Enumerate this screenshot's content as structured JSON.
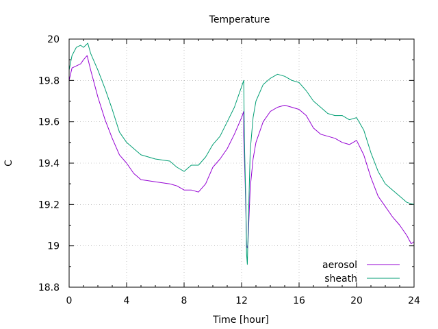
{
  "chart_data": {
    "type": "line",
    "title": "Temperature",
    "xlabel": "Time [hour]",
    "ylabel": "C",
    "xlim": [
      0,
      24
    ],
    "ylim": [
      18.8,
      20
    ],
    "xticks": [
      0,
      4,
      8,
      12,
      16,
      20,
      24
    ],
    "yticks": [
      18.8,
      19,
      19.2,
      19.4,
      19.6,
      19.8,
      20
    ],
    "grid": true,
    "legend_position": "bottom-right",
    "series": [
      {
        "name": "aerosol",
        "color": "#9400d3",
        "points": [
          [
            0,
            19.8
          ],
          [
            0.2,
            19.86
          ],
          [
            0.5,
            19.87
          ],
          [
            0.8,
            19.88
          ],
          [
            1.0,
            19.9
          ],
          [
            1.25,
            19.92
          ],
          [
            1.5,
            19.85
          ],
          [
            2.0,
            19.72
          ],
          [
            2.5,
            19.61
          ],
          [
            3.0,
            19.52
          ],
          [
            3.5,
            19.44
          ],
          [
            4.0,
            19.4
          ],
          [
            4.5,
            19.35
          ],
          [
            5.0,
            19.32
          ],
          [
            6.0,
            19.31
          ],
          [
            7.0,
            19.3
          ],
          [
            7.5,
            19.29
          ],
          [
            8.0,
            19.27
          ],
          [
            8.5,
            19.27
          ],
          [
            9.0,
            19.26
          ],
          [
            9.5,
            19.3
          ],
          [
            10.0,
            19.38
          ],
          [
            10.5,
            19.42
          ],
          [
            11.0,
            19.47
          ],
          [
            11.5,
            19.54
          ],
          [
            12.0,
            19.62
          ],
          [
            12.15,
            19.65
          ],
          [
            12.15,
            19.53
          ],
          [
            12.25,
            19.3
          ],
          [
            12.3,
            19.16
          ],
          [
            12.35,
            19.0
          ],
          [
            12.4,
            18.99
          ],
          [
            12.45,
            19.02
          ],
          [
            12.6,
            19.28
          ],
          [
            12.8,
            19.42
          ],
          [
            13.0,
            19.5
          ],
          [
            13.5,
            19.6
          ],
          [
            14.0,
            19.65
          ],
          [
            14.5,
            19.67
          ],
          [
            15.0,
            19.68
          ],
          [
            15.5,
            19.67
          ],
          [
            16.0,
            19.66
          ],
          [
            16.5,
            19.63
          ],
          [
            17.0,
            19.57
          ],
          [
            17.5,
            19.54
          ],
          [
            18.0,
            19.53
          ],
          [
            18.5,
            19.52
          ],
          [
            19.0,
            19.5
          ],
          [
            19.5,
            19.49
          ],
          [
            20.0,
            19.51
          ],
          [
            20.5,
            19.44
          ],
          [
            21.0,
            19.33
          ],
          [
            21.5,
            19.24
          ],
          [
            22.0,
            19.19
          ],
          [
            22.5,
            19.14
          ],
          [
            23.0,
            19.1
          ],
          [
            23.5,
            19.05
          ],
          [
            23.8,
            19.01
          ],
          [
            24.0,
            19.02
          ]
        ]
      },
      {
        "name": "sheath",
        "color": "#009e73",
        "points": [
          [
            0,
            19.85
          ],
          [
            0.2,
            19.92
          ],
          [
            0.5,
            19.96
          ],
          [
            0.8,
            19.97
          ],
          [
            1.0,
            19.96
          ],
          [
            1.3,
            19.98
          ],
          [
            1.5,
            19.93
          ],
          [
            2.0,
            19.85
          ],
          [
            2.5,
            19.76
          ],
          [
            3.0,
            19.66
          ],
          [
            3.5,
            19.55
          ],
          [
            4.0,
            19.5
          ],
          [
            4.5,
            19.47
          ],
          [
            5.0,
            19.44
          ],
          [
            6.0,
            19.42
          ],
          [
            7.0,
            19.41
          ],
          [
            7.5,
            19.38
          ],
          [
            8.0,
            19.36
          ],
          [
            8.5,
            19.39
          ],
          [
            9.0,
            19.39
          ],
          [
            9.5,
            19.43
          ],
          [
            10.0,
            19.49
          ],
          [
            10.5,
            19.53
          ],
          [
            11.0,
            19.6
          ],
          [
            11.5,
            19.67
          ],
          [
            12.0,
            19.77
          ],
          [
            12.15,
            19.8
          ],
          [
            12.2,
            19.5
          ],
          [
            12.3,
            19.2
          ],
          [
            12.35,
            18.96
          ],
          [
            12.4,
            18.91
          ],
          [
            12.45,
            19.05
          ],
          [
            12.6,
            19.46
          ],
          [
            12.8,
            19.62
          ],
          [
            13.0,
            19.7
          ],
          [
            13.5,
            19.78
          ],
          [
            14.0,
            19.81
          ],
          [
            14.5,
            19.83
          ],
          [
            15.0,
            19.82
          ],
          [
            15.5,
            19.8
          ],
          [
            16.0,
            19.79
          ],
          [
            16.5,
            19.75
          ],
          [
            17.0,
            19.7
          ],
          [
            17.5,
            19.67
          ],
          [
            18.0,
            19.64
          ],
          [
            18.5,
            19.63
          ],
          [
            19.0,
            19.63
          ],
          [
            19.5,
            19.61
          ],
          [
            20.0,
            19.62
          ],
          [
            20.5,
            19.56
          ],
          [
            21.0,
            19.45
          ],
          [
            21.5,
            19.36
          ],
          [
            22.0,
            19.3
          ],
          [
            22.5,
            19.27
          ],
          [
            23.0,
            19.24
          ],
          [
            23.5,
            19.21
          ],
          [
            24.0,
            19.2
          ]
        ]
      }
    ]
  }
}
